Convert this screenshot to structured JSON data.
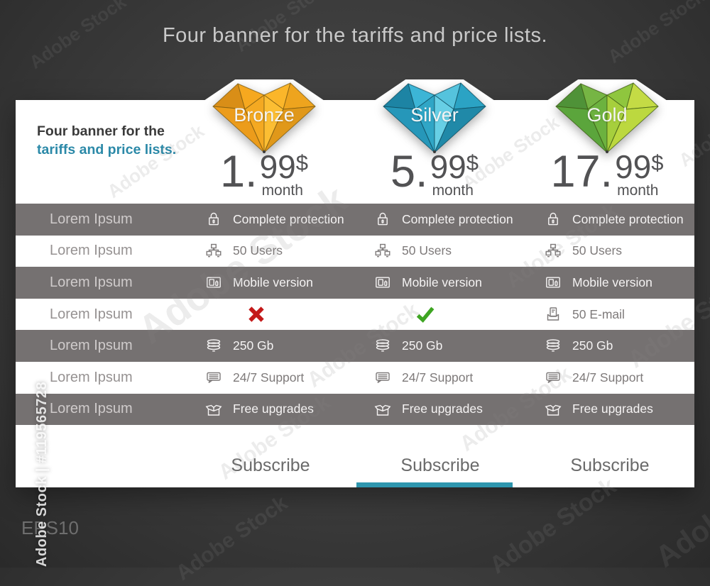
{
  "page_title": "Four banner for the tariffs and price lists.",
  "watermark": {
    "brand": "Adobe Stock",
    "id": "Adobe Stock | #119565728",
    "eps": "EPS10"
  },
  "colors": {
    "background": "#3d3d3d",
    "panel": "#ffffff",
    "row_gray": "#757171",
    "accent": "#2e96ae",
    "heading_dark": "#3a3a3a",
    "heading_teal": "#2b89a8",
    "price_text": "#525254",
    "cross": "#c41919",
    "check": "#3ea522"
  },
  "panel": {
    "heading_line1": "Four banner for the",
    "heading_line2": "tariffs and price lists.",
    "subscribe_label": "Subscribe",
    "active_plan_index": 1,
    "plans": [
      {
        "name": "Bronze",
        "price_int": "1.",
        "price_frac": "99",
        "currency": "$",
        "period": "month",
        "gem": {
          "stroke": "#7a5a10",
          "facets": [
            "#d98e17",
            "#f6a81f",
            "#fbb62a",
            "#eea41e",
            "#ec9c1b",
            "#f4a922",
            "#fcbe33",
            "#e0981a"
          ]
        }
      },
      {
        "name": "Silver",
        "price_int": "5.",
        "price_frac": "99",
        "currency": "$",
        "period": "month",
        "gem": {
          "stroke": "#0e4b5e",
          "facets": [
            "#1d84a4",
            "#3cb5d6",
            "#55c3dd",
            "#2ba3c4",
            "#2697b9",
            "#30a6c6",
            "#67cfe5",
            "#2089a8"
          ]
        }
      },
      {
        "name": "Gold",
        "price_int": "17.",
        "price_frac": "99",
        "currency": "$",
        "period": "month",
        "gem": {
          "stroke": "#3c5a14",
          "facets": [
            "#4f9238",
            "#76b544",
            "#8fc63e",
            "#c4db45",
            "#5ba53c",
            "#6cb23f",
            "#a6cf3d",
            "#bcd83f"
          ]
        }
      }
    ],
    "table": {
      "rows": [
        {
          "label": "Lorem Ipsum",
          "cells": [
            {
              "icon": "lock-icon",
              "text": "Complete protection"
            },
            {
              "icon": "lock-icon",
              "text": "Complete protection"
            },
            {
              "icon": "lock-icon",
              "text": "Complete protection"
            }
          ]
        },
        {
          "label": "Lorem Ipsum",
          "cells": [
            {
              "icon": "users-icon",
              "text": "50 Users"
            },
            {
              "icon": "users-icon",
              "text": "50 Users"
            },
            {
              "icon": "users-icon",
              "text": "50 Users"
            }
          ]
        },
        {
          "label": "Lorem Ipsum",
          "cells": [
            {
              "icon": "mobile-icon",
              "text": "Mobile version"
            },
            {
              "icon": "mobile-icon",
              "text": "Mobile version"
            },
            {
              "icon": "mobile-icon",
              "text": "Mobile version"
            }
          ]
        },
        {
          "label": "Lorem Ipsum",
          "cells": [
            {
              "icon": "cross-icon",
              "text": ""
            },
            {
              "icon": "check-icon",
              "text": ""
            },
            {
              "icon": "email-icon",
              "text": "50 E-mail"
            }
          ]
        },
        {
          "label": "Lorem Ipsum",
          "cells": [
            {
              "icon": "storage-icon",
              "text": "250 Gb"
            },
            {
              "icon": "storage-icon",
              "text": "250 Gb"
            },
            {
              "icon": "storage-icon",
              "text": "250 Gb"
            }
          ]
        },
        {
          "label": "Lorem Ipsum",
          "cells": [
            {
              "icon": "chat-icon",
              "text": "24/7 Support"
            },
            {
              "icon": "chat-icon",
              "text": "24/7 Support"
            },
            {
              "icon": "chat-icon",
              "text": "24/7 Support"
            }
          ]
        },
        {
          "label": "Lorem Ipsum",
          "cells": [
            {
              "icon": "box-icon",
              "text": "Free upgrades"
            },
            {
              "icon": "box-icon",
              "text": "Free upgrades"
            },
            {
              "icon": "box-icon",
              "text": "Free upgrades"
            }
          ]
        }
      ]
    }
  }
}
